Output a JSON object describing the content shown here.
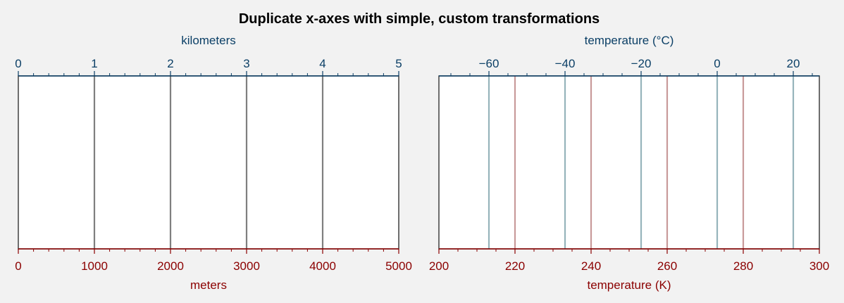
{
  "title": "Duplicate x-axes with simple, custom transformations",
  "colors": {
    "bottom_axis": "#8b0000",
    "top_axis": "#0b3f66",
    "frame": "#333333",
    "left_vlines": "#7f7f7f",
    "right_vlines_celsius": "#96b4bb",
    "right_vlines_kelvin": "#c89a9a"
  },
  "chart_data": [
    {
      "type": "line",
      "panel": "left",
      "xlabel_bottom": "meters",
      "xlabel_top": "kilometers",
      "xlim": [
        0,
        5000
      ],
      "bottom_ticks": [
        0,
        1000,
        2000,
        3000,
        4000,
        5000
      ],
      "bottom_tick_labels": [
        "0",
        "1000",
        "2000",
        "3000",
        "4000",
        "5000"
      ],
      "top_ticks_km": [
        0,
        1,
        2,
        3,
        4,
        5
      ],
      "top_tick_labels": [
        "0",
        "1",
        "2",
        "3",
        "4",
        "5"
      ],
      "vlines_m": [
        1000,
        2000,
        3000,
        4000
      ]
    },
    {
      "type": "line",
      "panel": "right",
      "xlabel_bottom": "temperature (K)",
      "xlabel_top": "temperature (°C)",
      "xlim": [
        200,
        300
      ],
      "bottom_ticks": [
        200,
        220,
        240,
        260,
        280,
        300
      ],
      "bottom_tick_labels": [
        "200",
        "220",
        "240",
        "260",
        "280",
        "300"
      ],
      "top_ticks_c": [
        -60,
        -40,
        -20,
        0,
        20
      ],
      "top_tick_labels": [
        "−60",
        "−40",
        "−20",
        "0",
        "20"
      ],
      "vlines_c": [
        -60,
        -40,
        -20,
        0,
        20
      ],
      "vlines_k": [
        220,
        240,
        260,
        280
      ]
    }
  ]
}
